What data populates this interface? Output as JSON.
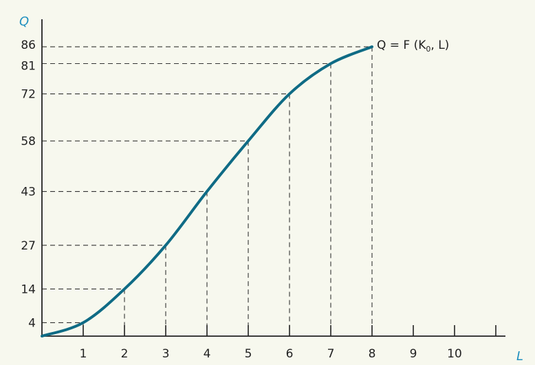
{
  "chart_data": {
    "type": "line",
    "title": "",
    "xlabel": "L",
    "ylabel": "Q",
    "xlim": [
      0,
      10.25
    ],
    "ylim": [
      0,
      86
    ],
    "x_ticks": [
      1,
      2,
      3,
      4,
      5,
      6,
      7,
      8,
      9,
      10
    ],
    "x_tick_labels": [
      "1",
      "2",
      "3",
      "4",
      "5",
      "6",
      "7",
      "8",
      "9",
      "10"
    ],
    "extra_x_tick_marks": [
      11
    ],
    "y_ticks": [
      4,
      14,
      27,
      43,
      58,
      72,
      81,
      86
    ],
    "y_tick_labels": [
      "4",
      "14",
      "27",
      "43",
      "58",
      "72",
      "81",
      "86"
    ],
    "series": [
      {
        "name": "Q = F(K0, L)",
        "x": [
          0,
          1,
          2,
          3,
          4,
          5,
          6,
          7,
          8
        ],
        "y": [
          0,
          4,
          14,
          27,
          43,
          58,
          72,
          81,
          86
        ]
      }
    ],
    "curve_label": {
      "prefix": "Q = F (K",
      "subscript": "0",
      "suffix": ", L)"
    },
    "reference_lines": "dashed",
    "grid": false,
    "colors": {
      "curve": "#0f6b85",
      "axis_title": "#1f8fbf",
      "background": "#f7f8ee",
      "guides": "#333333"
    }
  }
}
